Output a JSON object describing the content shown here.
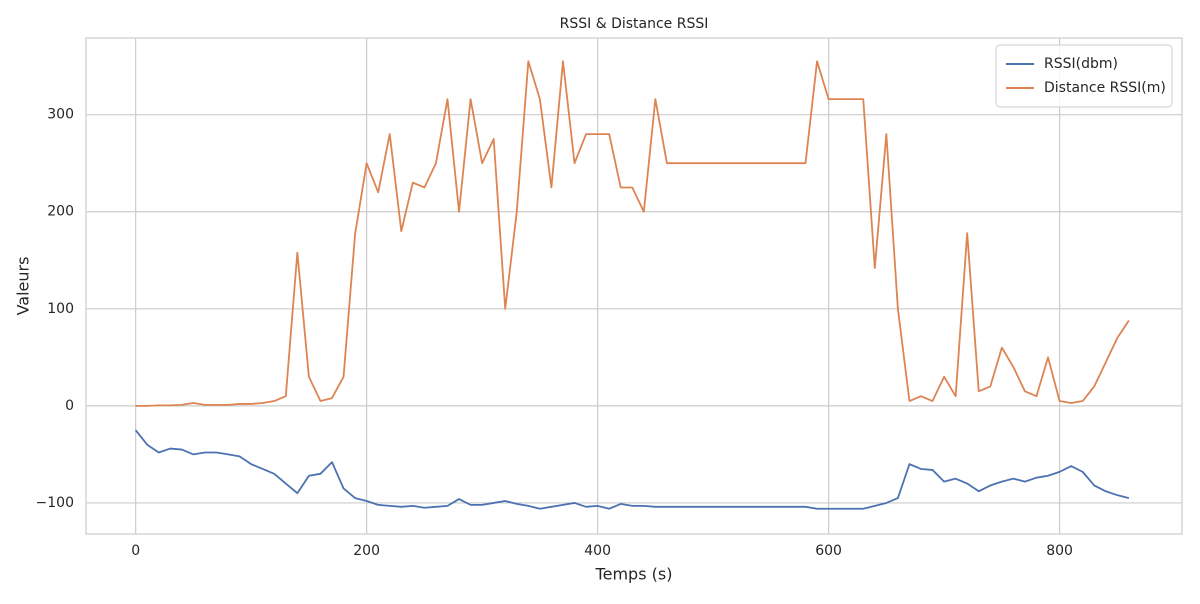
{
  "chart_data": {
    "type": "line",
    "title": "RSSI & Distance RSSI",
    "x_label": "Temps (s)",
    "y_label": "Valeurs",
    "x": [
      0,
      10,
      20,
      30,
      40,
      50,
      60,
      70,
      80,
      90,
      100,
      110,
      120,
      130,
      140,
      150,
      160,
      170,
      180,
      190,
      200,
      210,
      220,
      230,
      240,
      250,
      260,
      270,
      280,
      290,
      300,
      310,
      320,
      330,
      340,
      350,
      360,
      370,
      380,
      390,
      400,
      410,
      420,
      430,
      440,
      450,
      460,
      470,
      480,
      490,
      500,
      510,
      520,
      530,
      540,
      550,
      560,
      570,
      580,
      590,
      600,
      610,
      620,
      630,
      640,
      650,
      660,
      670,
      680,
      690,
      700,
      710,
      720,
      730,
      740,
      750,
      760,
      770,
      780,
      790,
      800,
      810,
      820,
      830,
      840,
      850,
      860
    ],
    "series": [
      {
        "name": "RSSI(dbm)",
        "color": "#4c72b0",
        "values": [
          -25,
          -40,
          -48,
          -44,
          -45,
          -50,
          -48,
          -48,
          -50,
          -52,
          -60,
          -65,
          -70,
          -80,
          -90,
          -72,
          -70,
          -58,
          -85,
          -95,
          -98,
          -102,
          -103,
          -104,
          -103,
          -105,
          -104,
          -103,
          -96,
          -102,
          -102,
          -100,
          -98,
          -101,
          -103,
          -106,
          -104,
          -102,
          -100,
          -104,
          -103,
          -106,
          -101,
          -103,
          -103,
          -104,
          -104,
          -104,
          -104,
          -104,
          -104,
          -104,
          -104,
          -104,
          -104,
          -104,
          -104,
          -104,
          -104,
          -106,
          -106,
          -106,
          -106,
          -106,
          -103,
          -100,
          -95,
          -60,
          -65,
          -66,
          -78,
          -75,
          -80,
          -88,
          -82,
          -78,
          -75,
          -78,
          -74,
          -72,
          -68,
          -62,
          -68,
          -82,
          -88,
          -92,
          -95
        ]
      },
      {
        "name": "Distance RSSI(m)",
        "color": "#dd8452",
        "values": [
          0,
          0,
          0.5,
          0.5,
          1,
          3,
          1,
          1,
          1,
          2,
          2,
          3,
          5,
          10,
          158,
          30,
          5,
          8,
          30,
          177,
          250,
          220,
          280,
          180,
          230,
          225,
          250,
          316,
          200,
          316,
          250,
          275,
          100,
          200,
          355,
          316,
          225,
          355,
          250,
          280,
          280,
          280,
          225,
          225,
          200,
          316,
          250,
          250,
          250,
          250,
          250,
          250,
          250,
          250,
          250,
          250,
          250,
          250,
          250,
          355,
          316,
          316,
          316,
          316,
          142,
          280,
          100,
          5,
          10,
          5,
          30,
          10,
          178,
          15,
          20,
          60,
          40,
          15,
          10,
          50,
          5,
          3,
          5,
          20,
          45,
          70,
          88
        ]
      }
    ],
    "xlim": [
      -43,
      906
    ],
    "ylim": [
      -132,
      379
    ],
    "xticks": [
      0,
      200,
      400,
      600,
      800
    ],
    "yticks": [
      {
        "value": -100,
        "label": "−100"
      },
      0,
      100,
      200,
      300
    ],
    "grid": true,
    "legend": "upper right"
  }
}
